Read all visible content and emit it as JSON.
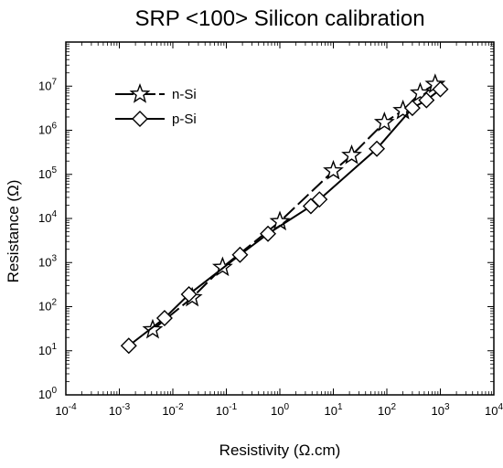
{
  "chart_data": {
    "type": "line",
    "title": "SRP <100> Silicon calibration",
    "xlabel": "Resistivity  (Ω.cm)",
    "ylabel": "Resistance  (Ω)",
    "xscale": "log",
    "yscale": "log",
    "xlim": [
      0.0001,
      10000
    ],
    "ylim": [
      1,
      100000000
    ],
    "x_ticks": [
      {
        "value": 0.0001,
        "base": "10",
        "exp": "-4"
      },
      {
        "value": 0.001,
        "base": "10",
        "exp": "-3"
      },
      {
        "value": 0.01,
        "base": "10",
        "exp": "-2"
      },
      {
        "value": 0.1,
        "base": "10",
        "exp": "-1"
      },
      {
        "value": 1,
        "base": "10",
        "exp": "0"
      },
      {
        "value": 10,
        "base": "10",
        "exp": "1"
      },
      {
        "value": 100,
        "base": "10",
        "exp": "2"
      },
      {
        "value": 1000,
        "base": "10",
        "exp": "3"
      },
      {
        "value": 10000,
        "base": "10",
        "exp": "4"
      }
    ],
    "y_ticks": [
      {
        "value": 1,
        "base": "10",
        "exp": "0"
      },
      {
        "value": 10,
        "base": "10",
        "exp": "1"
      },
      {
        "value": 100,
        "base": "10",
        "exp": "2"
      },
      {
        "value": 1000,
        "base": "10",
        "exp": "3"
      },
      {
        "value": 10000,
        "base": "10",
        "exp": "4"
      },
      {
        "value": 100000,
        "base": "10",
        "exp": "5"
      },
      {
        "value": 1000000,
        "base": "10",
        "exp": "6"
      },
      {
        "value": 10000000,
        "base": "10",
        "exp": "7"
      }
    ],
    "legend_position": "top-left",
    "grid": false,
    "series": [
      {
        "name": "n-Si",
        "marker": "star",
        "line_style": "long-dash",
        "color": "#000000",
        "x": [
          0.0042,
          0.023,
          0.085,
          1.0,
          10.0,
          22.0,
          90.0,
          200.0,
          420.0,
          800.0
        ],
        "y": [
          30,
          160,
          780,
          8500,
          120000,
          270000,
          1500000,
          2800000,
          7000000,
          11000000
        ]
      },
      {
        "name": "p-Si",
        "marker": "diamond",
        "line_style": "solid",
        "color": "#000000",
        "x": [
          0.0015,
          0.007,
          0.02,
          0.18,
          0.6,
          3.8,
          5.5,
          65.0,
          300.0,
          550.0,
          1000.0
        ],
        "y": [
          13,
          55,
          190,
          1500,
          4500,
          19000,
          27000,
          380000,
          3200000,
          4800000,
          8500000
        ]
      }
    ]
  }
}
